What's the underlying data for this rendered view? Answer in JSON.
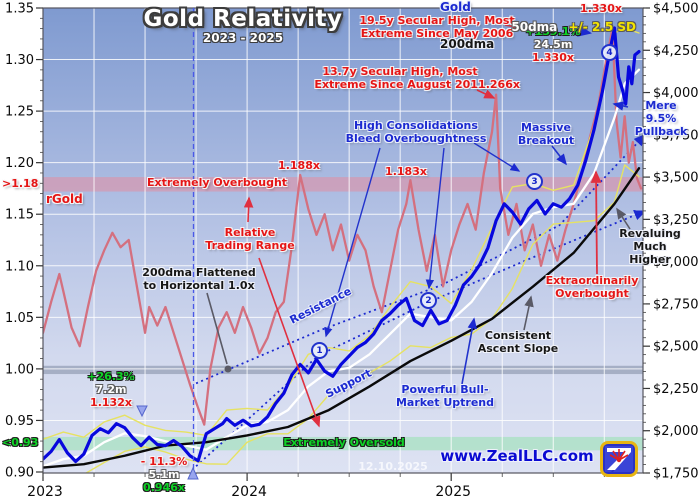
{
  "title": {
    "main": "Gold Relativity",
    "subtitle": "2023 - 2025"
  },
  "watermark": {
    "site": "www.ZealLLC.com",
    "date": "12.10.2025"
  },
  "side_labels": {
    "left_series": "rGold",
    "overbought_threshold": ">1.18",
    "oversold_threshold": "<0.93"
  },
  "legend": {
    "gold": "Gold",
    "dma50": "50dma",
    "sd_band": "+/- 2.5 SD",
    "dma200": "200dma"
  },
  "annotations": {
    "secular19": "19.5y Secular High, Most\nExtreme Since May 2006",
    "secular13": "13.7y Secular High, Most\nExtreme Since August 2011",
    "peak_label_top": "1.330x",
    "upleg_current": {
      "gain": "+139.1%",
      "duration": "24.5m",
      "multiple": "1.330x"
    },
    "spike_2025": "1.266x",
    "peak_2024a": "1.188x",
    "peak_2024b": "1.183x",
    "extremely_overbought": "Extremely Overbought",
    "relative_trading_range": "Relative\nTrading Range",
    "dma_flattened": "200dma Flattened\nto Horizontal 1.0x",
    "high_consolidations": "High Consolidations\nBleed Overboughtness",
    "massive_breakout": "Massive\nBreakout",
    "mere_pullback": "Mere 9.5%\nPullback",
    "revaluing": "Revaluing\nMuch Higher",
    "extraordinarily_overbought": "Extraordinarily\nOverbought",
    "consistent_ascent": "Consistent\nAscent Slope",
    "resistance": "Resistance",
    "support": "Support",
    "powerful_uptrend": "Powerful Bull-\nMarket Uptrend",
    "extremely_oversold": "Extremely Oversold",
    "upleg_2023": {
      "gain": "+26.3%",
      "duration": "7.2m",
      "multiple": "1.132x"
    },
    "correction_2023": {
      "loss": "- 11.3%",
      "duration": "5.1m",
      "multiple": "0.946x"
    },
    "markers": [
      "1",
      "2",
      "3",
      "4"
    ]
  },
  "chart_data": {
    "type": "line",
    "title": "Gold Relativity 2023 - 2025",
    "x_axis": {
      "range_years_from_2023": [
        0,
        2.94
      ],
      "ticks": [
        0,
        1,
        2
      ],
      "labels": [
        "2023",
        "2024",
        "2025"
      ],
      "minor_step": 0.25
    },
    "left_axis": {
      "name": "rGold ratio",
      "range": [
        0.9,
        1.35
      ],
      "minor_step": 0.01,
      "ticks": [
        1.35,
        1.3,
        1.25,
        1.2,
        1.15,
        1.1,
        1.05,
        1.0,
        0.95,
        0.9
      ],
      "labels": [
        "1.35",
        "1.30",
        "1.25",
        "1.20",
        "1.15",
        "1.10",
        "1.05",
        "1.00",
        "0.95",
        "0.90"
      ]
    },
    "right_axis": {
      "name": "Gold price US$",
      "range": [
        1750,
        4500
      ],
      "minor_step": 50,
      "ticks": [
        4500,
        4250,
        4000,
        3750,
        3500,
        3250,
        3000,
        2750,
        2500,
        2250,
        2000,
        1750
      ],
      "labels": [
        "$4,500",
        "$4,250",
        "$4,000",
        "$3,750",
        "$3,500",
        "$3,250",
        "$3,000",
        "$2,750",
        "$2,500",
        "$2,250",
        "$2,000",
        "$1,750"
      ]
    },
    "bands": [
      {
        "name": "extremely-overbought-band",
        "axis": "left",
        "from": 1.172,
        "to": 1.186,
        "color": "rgba(228,140,160,0.55)"
      },
      {
        "name": "unity-band",
        "axis": "left",
        "from": 0.995,
        "to": 1.003,
        "color": "rgba(120,132,155,0.5)"
      },
      {
        "name": "extremely-oversold-band",
        "axis": "left",
        "from": 0.921,
        "to": 0.934,
        "color": "rgba(150,225,175,0.55)"
      }
    ],
    "event_line": {
      "x": 0.735,
      "note": "Oct 2023 upleg birth"
    },
    "trendlines": [
      {
        "name": "resistance",
        "axis": "right",
        "x": [
          0.75,
          1.36,
          1.95,
          2.53,
          2.95
        ],
        "y": [
          2280,
          2595,
          2860,
          3215,
          3750
        ]
      },
      {
        "name": "support",
        "axis": "right",
        "x": [
          0.75,
          1.35,
          1.89,
          2.39,
          2.95
        ],
        "y": [
          1790,
          2445,
          2760,
          3020,
          3300
        ]
      }
    ],
    "series": [
      {
        "name": "rGold",
        "axis": "left",
        "color": "#d4707f",
        "width": 2.3,
        "x": [
          0,
          0.04,
          0.08,
          0.1,
          0.14,
          0.18,
          0.22,
          0.26,
          0.3,
          0.34,
          0.38,
          0.42,
          0.46,
          0.5,
          0.52,
          0.56,
          0.6,
          0.64,
          0.68,
          0.72,
          0.76,
          0.79,
          0.82,
          0.86,
          0.9,
          0.94,
          0.98,
          1.02,
          1.06,
          1.1,
          1.14,
          1.18,
          1.22,
          1.26,
          1.3,
          1.34,
          1.38,
          1.42,
          1.46,
          1.5,
          1.54,
          1.58,
          1.62,
          1.66,
          1.7,
          1.74,
          1.78,
          1.8,
          1.84,
          1.88,
          1.92,
          1.96,
          2.0,
          2.04,
          2.08,
          2.12,
          2.16,
          2.2,
          2.22,
          2.24,
          2.28,
          2.32,
          2.36,
          2.4,
          2.44,
          2.48,
          2.52,
          2.56,
          2.6,
          2.64,
          2.68,
          2.72,
          2.76,
          2.79,
          2.81,
          2.83,
          2.85,
          2.87,
          2.89,
          2.91,
          2.93
        ],
        "y": [
          1.035,
          1.065,
          1.092,
          1.075,
          1.04,
          1.022,
          1.06,
          1.095,
          1.115,
          1.132,
          1.118,
          1.125,
          1.08,
          1.035,
          1.06,
          1.042,
          1.06,
          1.035,
          1.01,
          0.985,
          0.962,
          0.946,
          1.0,
          1.04,
          1.055,
          1.035,
          1.06,
          1.04,
          1.015,
          1.03,
          1.055,
          1.065,
          1.12,
          1.188,
          1.155,
          1.13,
          1.15,
          1.115,
          1.14,
          1.105,
          1.13,
          1.115,
          1.08,
          1.055,
          1.095,
          1.135,
          1.16,
          1.183,
          1.135,
          1.095,
          1.13,
          1.08,
          1.115,
          1.14,
          1.16,
          1.135,
          1.19,
          1.23,
          1.266,
          1.175,
          1.13,
          1.16,
          1.115,
          1.14,
          1.1,
          1.13,
          1.105,
          1.135,
          1.16,
          1.19,
          1.225,
          1.255,
          1.3,
          1.33,
          1.24,
          1.205,
          1.245,
          1.2,
          1.22,
          1.185,
          1.175
        ]
      },
      {
        "name": "sd-upper",
        "axis": "right",
        "color": "#e6e262",
        "width": 1.4,
        "x": [
          0,
          0.1,
          0.2,
          0.3,
          0.4,
          0.5,
          0.6,
          0.7,
          0.8,
          0.9,
          1.0,
          1.1,
          1.2,
          1.3,
          1.4,
          1.5,
          1.6,
          1.7,
          1.8,
          1.9,
          2.0,
          2.1,
          2.2,
          2.3,
          2.4,
          2.5,
          2.6,
          2.7,
          2.8,
          2.85,
          2.92
        ],
        "y": [
          1950,
          1992,
          1962,
          2052,
          2092,
          2032,
          2002,
          1992,
          1972,
          2122,
          2132,
          2122,
          2262,
          2452,
          2492,
          2472,
          2562,
          2732,
          2882,
          2852,
          2752,
          2952,
          3202,
          3442,
          3462,
          3422,
          3452,
          3802,
          4352,
          4382,
          4352
        ]
      },
      {
        "name": "sd-lower",
        "axis": "right",
        "color": "#e6e262",
        "width": 1.4,
        "x": [
          0,
          0.1,
          0.2,
          0.3,
          0.4,
          0.5,
          0.6,
          0.7,
          0.8,
          0.9,
          1.0,
          1.1,
          1.2,
          1.3,
          1.4,
          1.5,
          1.6,
          1.7,
          1.8,
          1.9,
          2.0,
          2.1,
          2.2,
          2.3,
          2.4,
          2.5,
          2.6,
          2.7,
          2.8,
          2.85,
          2.92
        ],
        "y": [
          1630,
          1672,
          1742,
          1812,
          1878,
          1904,
          1874,
          1832,
          1804,
          1802,
          1932,
          1982,
          1982,
          2072,
          2212,
          2272,
          2342,
          2412,
          2502,
          2492,
          2552,
          2572,
          2662,
          2842,
          3102,
          3222,
          3232,
          3242,
          3352,
          3572,
          3502
        ]
      },
      {
        "name": "50dma",
        "axis": "right",
        "color": "#ffffff",
        "width": 2.3,
        "x": [
          0,
          0.1,
          0.2,
          0.3,
          0.4,
          0.5,
          0.6,
          0.7,
          0.8,
          0.9,
          1.0,
          1.1,
          1.2,
          1.3,
          1.4,
          1.5,
          1.6,
          1.7,
          1.8,
          1.9,
          2.0,
          2.1,
          2.2,
          2.3,
          2.4,
          2.5,
          2.6,
          2.7,
          2.8,
          2.85,
          2.92
        ],
        "y": [
          1790,
          1832,
          1852,
          1932,
          1985,
          1968,
          1938,
          1912,
          1888,
          1962,
          2032,
          2052,
          2122,
          2262,
          2352,
          2372,
          2452,
          2572,
          2692,
          2672,
          2652,
          2762,
          2932,
          3142,
          3282,
          3322,
          3342,
          3522,
          3852,
          4052,
          4135
        ]
      },
      {
        "name": "200dma",
        "axis": "right",
        "color": "#0a0a0a",
        "width": 2.4,
        "x": [
          0,
          0.2,
          0.4,
          0.6,
          0.8,
          1.0,
          1.2,
          1.4,
          1.6,
          1.8,
          2.0,
          2.2,
          2.4,
          2.6,
          2.8,
          2.92
        ],
        "y": [
          1782,
          1802,
          1852,
          1912,
          1932,
          1972,
          2022,
          2122,
          2262,
          2412,
          2532,
          2662,
          2852,
          3052,
          3342,
          3552
        ]
      },
      {
        "name": "Gold",
        "axis": "right",
        "color": "#0808dd",
        "width": 3.2,
        "x": [
          0,
          0.04,
          0.08,
          0.12,
          0.16,
          0.2,
          0.24,
          0.28,
          0.32,
          0.36,
          0.4,
          0.44,
          0.48,
          0.52,
          0.56,
          0.6,
          0.64,
          0.68,
          0.72,
          0.76,
          0.8,
          0.84,
          0.88,
          0.9,
          0.94,
          0.98,
          1.02,
          1.06,
          1.1,
          1.14,
          1.18,
          1.22,
          1.26,
          1.3,
          1.34,
          1.38,
          1.42,
          1.46,
          1.5,
          1.54,
          1.58,
          1.62,
          1.66,
          1.7,
          1.74,
          1.78,
          1.82,
          1.86,
          1.9,
          1.94,
          1.98,
          2.02,
          2.06,
          2.1,
          2.14,
          2.18,
          2.22,
          2.26,
          2.3,
          2.34,
          2.38,
          2.42,
          2.46,
          2.5,
          2.54,
          2.58,
          2.62,
          2.66,
          2.7,
          2.74,
          2.78,
          2.8,
          2.82,
          2.84,
          2.855,
          2.87,
          2.885,
          2.9,
          2.92
        ],
        "y": [
          1832,
          1878,
          1948,
          1868,
          1818,
          1862,
          1972,
          2012,
          1988,
          2042,
          2018,
          1958,
          1912,
          1962,
          1918,
          1912,
          1942,
          1908,
          1852,
          1822,
          1982,
          2012,
          2042,
          2072,
          2032,
          2062,
          2028,
          2038,
          2082,
          2162,
          2222,
          2332,
          2392,
          2342,
          2422,
          2352,
          2322,
          2392,
          2442,
          2492,
          2522,
          2572,
          2652,
          2692,
          2742,
          2782,
          2652,
          2622,
          2712,
          2632,
          2652,
          2742,
          2862,
          2912,
          2982,
          3082,
          3242,
          3342,
          3292,
          3222,
          3312,
          3362,
          3282,
          3342,
          3322,
          3372,
          3452,
          3602,
          3782,
          4002,
          4262,
          4382,
          4092,
          4012,
          3932,
          4152,
          4052,
          4222,
          4242
        ]
      }
    ]
  }
}
